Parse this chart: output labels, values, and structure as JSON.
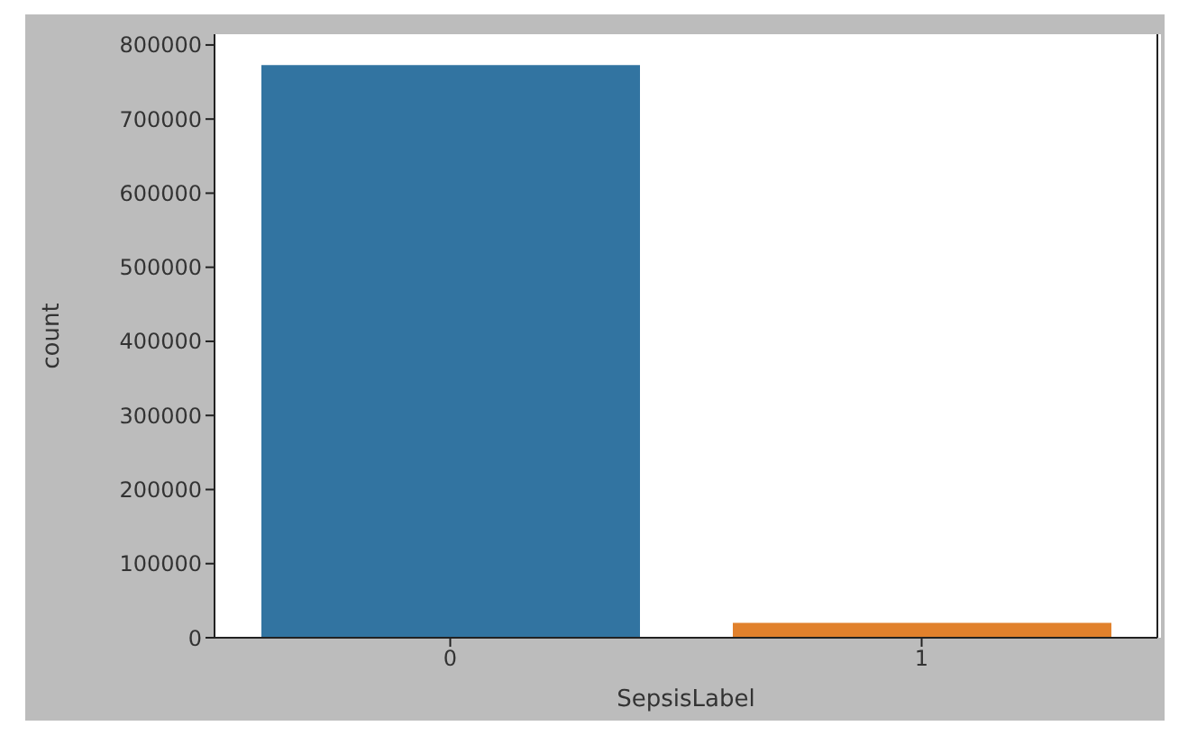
{
  "chart_data": {
    "type": "bar",
    "xlabel": "SepsisLabel",
    "ylabel": "count",
    "categories": [
      "0",
      "1"
    ],
    "values": [
      773000,
      20000
    ],
    "colors": [
      "#3274a1",
      "#e1812c"
    ],
    "ylim": [
      0,
      814500
    ],
    "yticks": [
      0,
      100000,
      200000,
      300000,
      400000,
      500000,
      600000,
      700000,
      800000
    ],
    "grid": false,
    "legend": false
  }
}
